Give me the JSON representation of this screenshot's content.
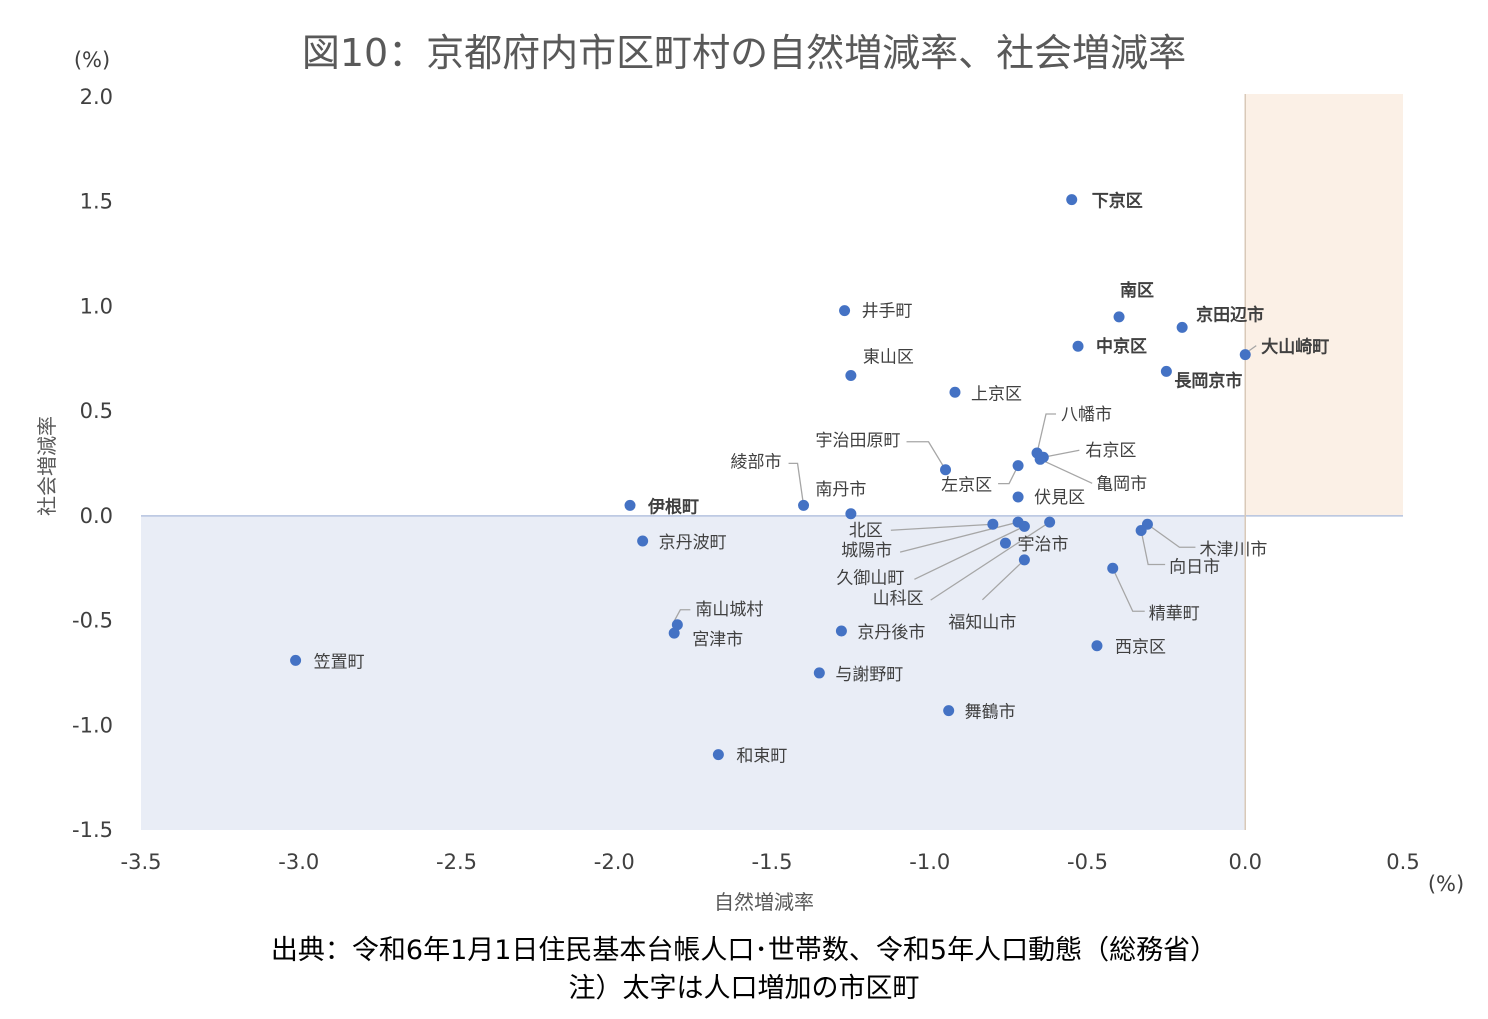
{
  "chart_data": {
    "type": "scatter",
    "title": "図10：京都府内市区町村の自然増減率、社会増減率",
    "xlabel": "自然増減率",
    "ylabel": "社会増減率",
    "x_unit": "(%)",
    "y_unit": "(%)",
    "xlim": [
      -3.5,
      0.5
    ],
    "ylim": [
      -1.5,
      2.0
    ],
    "xticks": [
      "-3.5",
      "-3.0",
      "-2.5",
      "-2.0",
      "-1.5",
      "-1.0",
      "-0.5",
      "0.0",
      "0.5"
    ],
    "yticks": [
      "2.0",
      "1.5",
      "1.0",
      "0.5",
      "0.0",
      "-0.5",
      "-1.0",
      "-1.5"
    ],
    "grid": false,
    "legend": "none",
    "colors": {
      "point": "#4472C4",
      "positive_region": "#FBF0E6",
      "negative_region": "#E9EDF6",
      "zero_line": "#B4C3DF",
      "text": "#404040",
      "leader": "#A6A6A6"
    },
    "points": [
      {
        "label": "下京区",
        "x": -0.55,
        "y": 1.51,
        "bold": true
      },
      {
        "label": "南区",
        "x": -0.4,
        "y": 0.95,
        "bold": true
      },
      {
        "label": "京田辺市",
        "x": -0.2,
        "y": 0.9,
        "bold": true
      },
      {
        "label": "中京区",
        "x": -0.53,
        "y": 0.81,
        "bold": true
      },
      {
        "label": "大山崎町",
        "x": 0.0,
        "y": 0.77,
        "bold": true
      },
      {
        "label": "長岡京市",
        "x": -0.25,
        "y": 0.69,
        "bold": true
      },
      {
        "label": "井手町",
        "x": -1.27,
        "y": 0.98,
        "bold": false
      },
      {
        "label": "東山区",
        "x": -1.25,
        "y": 0.67,
        "bold": false
      },
      {
        "label": "上京区",
        "x": -0.92,
        "y": 0.59,
        "bold": false
      },
      {
        "label": "八幡市",
        "x": -0.66,
        "y": 0.3,
        "bold": false
      },
      {
        "label": "右京区",
        "x": -0.64,
        "y": 0.28,
        "bold": false
      },
      {
        "label": "亀岡市",
        "x": -0.65,
        "y": 0.27,
        "bold": false
      },
      {
        "label": "宇治田原町",
        "x": -0.95,
        "y": 0.22,
        "bold": false
      },
      {
        "label": "左京区",
        "x": -0.72,
        "y": 0.24,
        "bold": false
      },
      {
        "label": "伏見区",
        "x": -0.72,
        "y": 0.09,
        "bold": false
      },
      {
        "label": "綾部市",
        "x": -1.4,
        "y": 0.05,
        "bold": false
      },
      {
        "label": "伊根町",
        "x": -1.95,
        "y": 0.05,
        "bold": true
      },
      {
        "label": "南丹市",
        "x": -1.25,
        "y": 0.01,
        "bold": false
      },
      {
        "label": "京丹波町",
        "x": -1.91,
        "y": -0.12,
        "bold": false
      },
      {
        "label": "北区",
        "x": -0.8,
        "y": -0.04,
        "bold": false
      },
      {
        "label": "城陽市",
        "x": -0.72,
        "y": -0.03,
        "bold": false
      },
      {
        "label": "久御山町",
        "x": -0.7,
        "y": -0.05,
        "bold": false
      },
      {
        "label": "山科区",
        "x": -0.62,
        "y": -0.03,
        "bold": false
      },
      {
        "label": "宇治市",
        "x": -0.76,
        "y": -0.13,
        "bold": false
      },
      {
        "label": "福知山市",
        "x": -0.7,
        "y": -0.21,
        "bold": false
      },
      {
        "label": "木津川市",
        "x": -0.31,
        "y": -0.04,
        "bold": false
      },
      {
        "label": "向日市",
        "x": -0.33,
        "y": -0.07,
        "bold": false
      },
      {
        "label": "精華町",
        "x": -0.42,
        "y": -0.25,
        "bold": false
      },
      {
        "label": "西京区",
        "x": -0.47,
        "y": -0.62,
        "bold": false
      },
      {
        "label": "南山城村",
        "x": -1.8,
        "y": -0.52,
        "bold": false
      },
      {
        "label": "宮津市",
        "x": -1.81,
        "y": -0.56,
        "bold": false
      },
      {
        "label": "京丹後市",
        "x": -1.28,
        "y": -0.55,
        "bold": false
      },
      {
        "label": "笠置町",
        "x": -3.01,
        "y": -0.69,
        "bold": false
      },
      {
        "label": "与謝野町",
        "x": -1.35,
        "y": -0.75,
        "bold": false
      },
      {
        "label": "舞鶴市",
        "x": -0.94,
        "y": -0.93,
        "bold": false
      },
      {
        "label": "和束町",
        "x": -1.67,
        "y": -1.14,
        "bold": false
      }
    ]
  },
  "captions": {
    "source": "出典：令和6年1月1日住民基本台帳人口･世帯数、令和5年人口動態（総務省）",
    "note": "注）太字は人口増加の市区町"
  }
}
